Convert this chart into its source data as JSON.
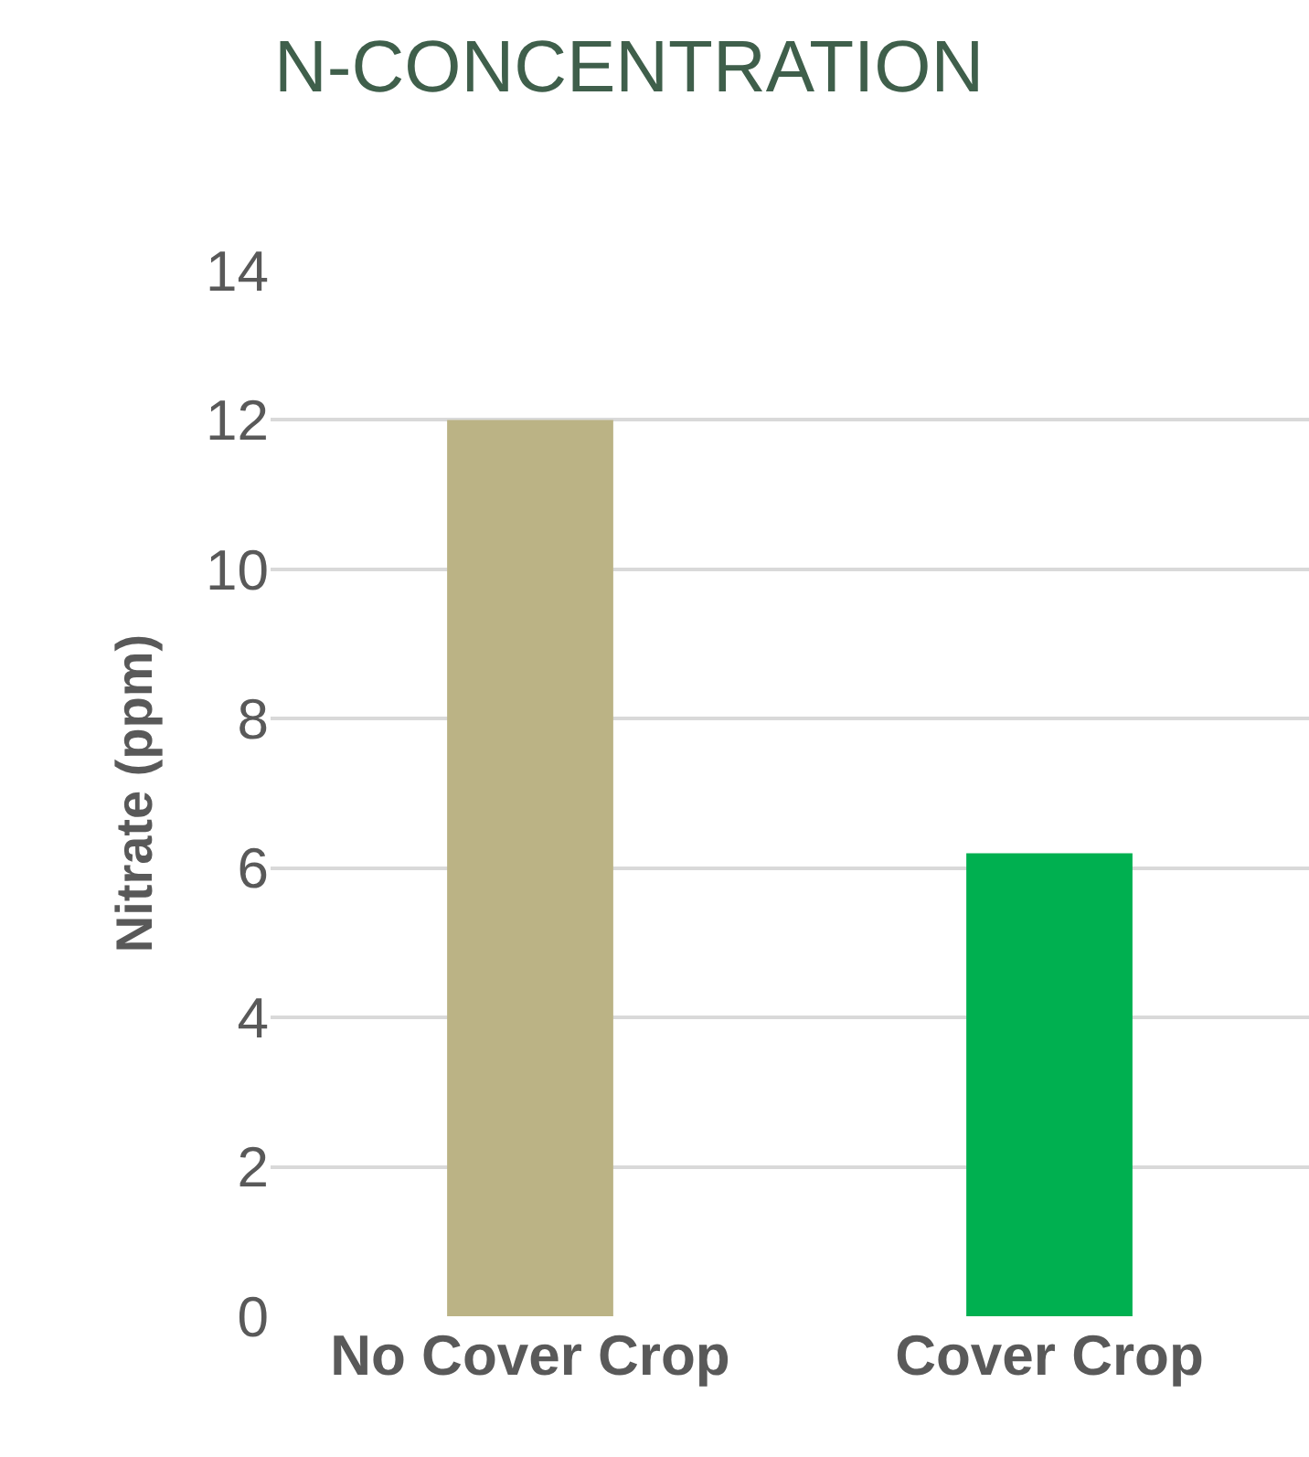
{
  "chart_data": {
    "type": "bar",
    "title": "N-CONCENTRATION",
    "ylabel": "Nitrate (ppm)",
    "categories": [
      "No Cover Crop",
      "Cover Crop"
    ],
    "values": [
      12,
      6.2
    ],
    "colors": [
      "#bbb385",
      "#00b050"
    ],
    "ylim": [
      0,
      14
    ],
    "yticks": [
      0,
      2,
      4,
      6,
      8,
      10,
      12,
      14
    ],
    "grid": "y",
    "legend": false
  }
}
